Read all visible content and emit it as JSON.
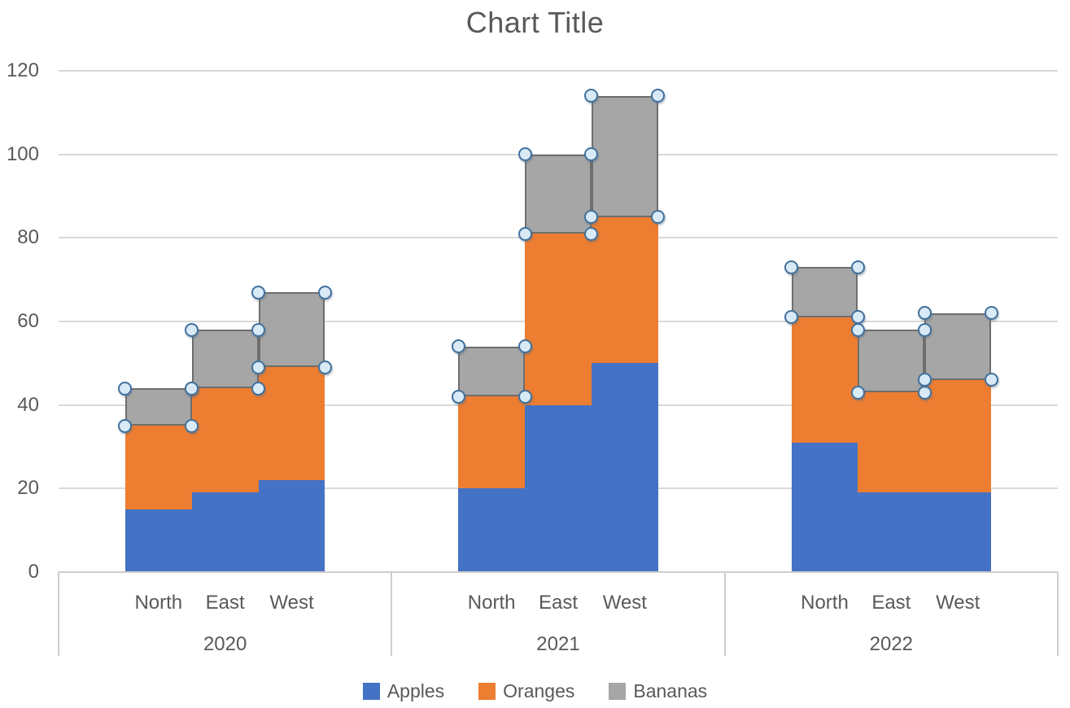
{
  "chart_data": {
    "type": "bar",
    "stacked": true,
    "title": "Chart Title",
    "xlabel": "",
    "ylabel": "",
    "ylim": [
      0,
      120
    ],
    "yticks": [
      0,
      20,
      40,
      60,
      80,
      100,
      120
    ],
    "grid": true,
    "legend_position": "bottom",
    "group_labels": [
      "2020",
      "2021",
      "2022"
    ],
    "categories": [
      "North",
      "East",
      "West"
    ],
    "series": [
      {
        "name": "Apples",
        "color": "#4472c4",
        "values": [
          [
            15,
            19,
            22
          ],
          [
            20,
            40,
            50
          ],
          [
            31,
            19,
            19
          ]
        ]
      },
      {
        "name": "Oranges",
        "color": "#ed7d31",
        "values": [
          [
            20,
            25,
            27
          ],
          [
            22,
            41,
            35
          ],
          [
            30,
            24,
            27
          ]
        ]
      },
      {
        "name": "Bananas",
        "color": "#a6a6a6",
        "values": [
          [
            9,
            14,
            18
          ],
          [
            12,
            19,
            29
          ],
          [
            12,
            15,
            16
          ]
        ]
      }
    ],
    "selection": {
      "selected_series": "Bananas",
      "segment_border_color": "#6e6e6e",
      "handle_fill": "#d9eaf7",
      "handle_border": "#41719c"
    }
  },
  "colors": {
    "gridline": "#d9d9d9",
    "axis_line": "#cfcdcb",
    "text": "#595959",
    "background": "#ffffff"
  }
}
